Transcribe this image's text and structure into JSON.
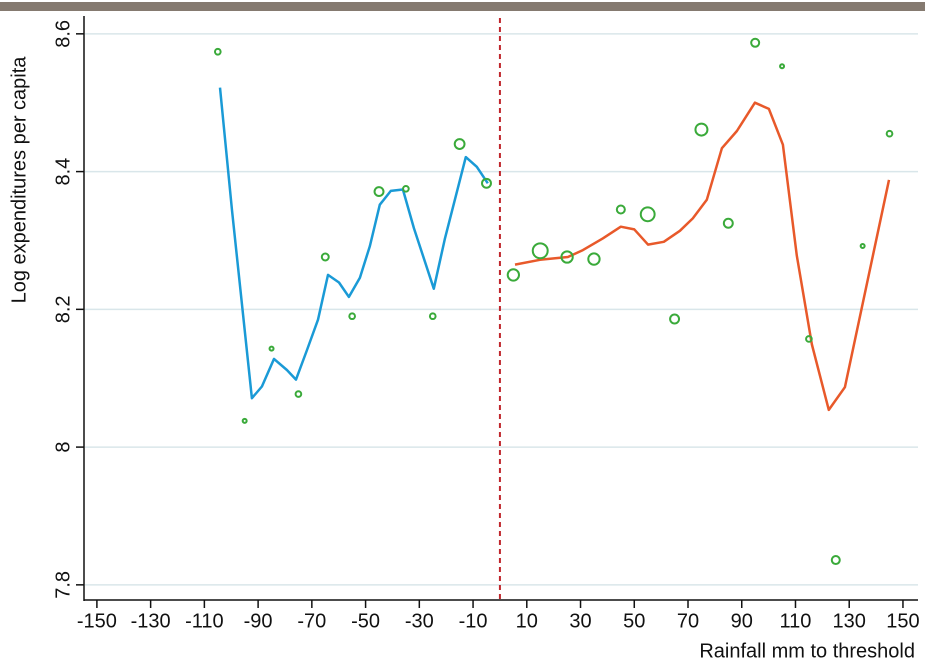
{
  "chart_data": {
    "type": "scatter",
    "x_label": "Rainfall mm to threshold",
    "y_label": "Log expenditures per capita",
    "x": [
      -105,
      -95,
      -85,
      -75,
      -65,
      -55,
      -45,
      -35,
      -25,
      -15,
      -5,
      5,
      15,
      25,
      35,
      45,
      55,
      65,
      75,
      85,
      95,
      105,
      115,
      125,
      135,
      145
    ],
    "values": [
      8.574,
      8.038,
      8.143,
      8.077,
      8.276,
      8.19,
      8.371,
      8.375,
      8.19,
      8.44,
      8.383,
      8.25,
      8.285,
      8.276,
      8.273,
      8.345,
      8.338,
      8.186,
      8.461,
      8.325,
      8.587,
      8.553,
      8.157,
      7.836,
      8.292,
      8.455
    ],
    "sizes": [
      2,
      1,
      1,
      2,
      3,
      2,
      5,
      2,
      2,
      6,
      5,
      8,
      14,
      8,
      8,
      4,
      12,
      5,
      9,
      5,
      4,
      1,
      2,
      4,
      1,
      2
    ],
    "color": "#3aaa3a",
    "lines": [
      {
        "color": "#1a9ad6",
        "x": [
          -104.2,
          -99.7,
          -92.3,
          -88.6,
          -84.1,
          -79.3,
          -75.9,
          -71.8,
          -67.7,
          -64,
          -59.9,
          -56.2,
          -52.1,
          -48.4,
          -44.7,
          -40.6,
          -36.1,
          -32,
          -24.6,
          -20.5,
          -12.7,
          -8.6,
          -4.5
        ],
        "values": [
          8.522,
          8.344,
          8.071,
          8.088,
          8.128,
          8.112,
          8.098,
          8.141,
          8.185,
          8.25,
          8.239,
          8.218,
          8.246,
          8.292,
          8.352,
          8.372,
          8.374,
          8.318,
          8.23,
          8.302,
          8.421,
          8.407,
          8.383
        ]
      },
      {
        "color": "#e8592a",
        "x": [
          5.6,
          14.9,
          25.3,
          30.9,
          38.3,
          45,
          50,
          55.1,
          61,
          67,
          71.8,
          77,
          82.6,
          88.2,
          94.9,
          100.1,
          105.3,
          110.5,
          116.1,
          122.4,
          128.4,
          144.8
        ],
        "values": [
          8.265,
          8.272,
          8.276,
          8.286,
          8.303,
          8.32,
          8.316,
          8.294,
          8.298,
          8.314,
          8.332,
          8.359,
          8.434,
          8.459,
          8.5,
          8.491,
          8.439,
          8.278,
          8.149,
          8.054,
          8.087,
          8.388
        ]
      }
    ],
    "vline": {
      "value": 0,
      "color": "#c0262c"
    },
    "xlim": [
      -154.8,
      155.6
    ],
    "ylim": [
      7.778,
      8.623
    ],
    "xticks": [
      -150,
      -130,
      -110,
      -90,
      -70,
      -50,
      -30,
      -10,
      10,
      30,
      50,
      70,
      90,
      110,
      130,
      150
    ],
    "yticks": [
      7.8,
      8,
      8.2,
      8.4,
      8.6
    ],
    "grid": true
  }
}
